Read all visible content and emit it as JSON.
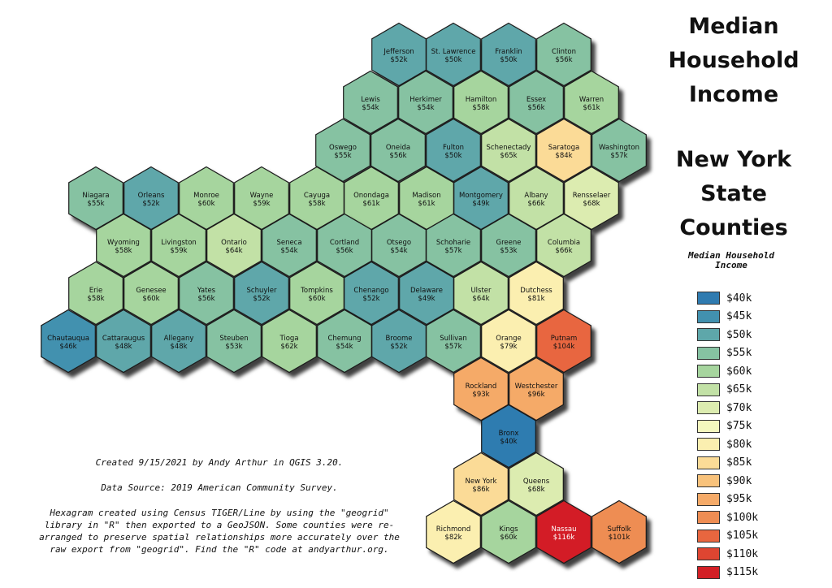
{
  "title": {
    "line1": "Median Household Income",
    "line2": "New York State Counties"
  },
  "legend": {
    "title": "Median Household Income",
    "items": [
      {
        "label": "$40k",
        "color": "#2f7bb0"
      },
      {
        "label": "$45k",
        "color": "#4291af"
      },
      {
        "label": "$50k",
        "color": "#5ea7aa"
      },
      {
        "label": "$55k",
        "color": "#86c2a2"
      },
      {
        "label": "$60k",
        "color": "#a6d59e"
      },
      {
        "label": "$65k",
        "color": "#c2e1a6"
      },
      {
        "label": "$70k",
        "color": "#dcecb0"
      },
      {
        "label": "$75k",
        "color": "#f4f8be"
      },
      {
        "label": "$80k",
        "color": "#fbefb0"
      },
      {
        "label": "$85k",
        "color": "#fbdb97"
      },
      {
        "label": "$90k",
        "color": "#f8c27b"
      },
      {
        "label": "$95k",
        "color": "#f5aa68"
      },
      {
        "label": "$100k",
        "color": "#ee8d53"
      },
      {
        "label": "$105k",
        "color": "#e8663f"
      },
      {
        "label": "$110k",
        "color": "#de4531"
      },
      {
        "label": "$115k",
        "color": "#d31f25"
      }
    ]
  },
  "counties": [
    {
      "name": "Jefferson",
      "value": "$52k",
      "income": 52
    },
    {
      "name": "St. Lawrence",
      "value": "$50k",
      "income": 50
    },
    {
      "name": "Franklin",
      "value": "$50k",
      "income": 50
    },
    {
      "name": "Clinton",
      "value": "$56k",
      "income": 56
    },
    {
      "name": "Lewis",
      "value": "$54k",
      "income": 54
    },
    {
      "name": "Herkimer",
      "value": "$54k",
      "income": 54
    },
    {
      "name": "Hamilton",
      "value": "$58k",
      "income": 58
    },
    {
      "name": "Essex",
      "value": "$56k",
      "income": 56
    },
    {
      "name": "Warren",
      "value": "$61k",
      "income": 61
    },
    {
      "name": "Oswego",
      "value": "$55k",
      "income": 55
    },
    {
      "name": "Oneida",
      "value": "$56k",
      "income": 56
    },
    {
      "name": "Fulton",
      "value": "$50k",
      "income": 50
    },
    {
      "name": "Schenectady",
      "value": "$65k",
      "income": 65
    },
    {
      "name": "Saratoga",
      "value": "$84k",
      "income": 84
    },
    {
      "name": "Washington",
      "value": "$57k",
      "income": 57
    },
    {
      "name": "Niagara",
      "value": "$55k",
      "income": 55
    },
    {
      "name": "Orleans",
      "value": "$52k",
      "income": 52
    },
    {
      "name": "Monroe",
      "value": "$60k",
      "income": 60
    },
    {
      "name": "Wayne",
      "value": "$59k",
      "income": 59
    },
    {
      "name": "Cayuga",
      "value": "$58k",
      "income": 58
    },
    {
      "name": "Onondaga",
      "value": "$61k",
      "income": 61
    },
    {
      "name": "Madison",
      "value": "$61k",
      "income": 61
    },
    {
      "name": "Montgomery",
      "value": "$49k",
      "income": 49
    },
    {
      "name": "Albany",
      "value": "$66k",
      "income": 66
    },
    {
      "name": "Rensselaer",
      "value": "$68k",
      "income": 68
    },
    {
      "name": "Wyoming",
      "value": "$58k",
      "income": 58
    },
    {
      "name": "Livingston",
      "value": "$59k",
      "income": 59
    },
    {
      "name": "Ontario",
      "value": "$64k",
      "income": 64
    },
    {
      "name": "Seneca",
      "value": "$54k",
      "income": 54
    },
    {
      "name": "Cortland",
      "value": "$56k",
      "income": 56
    },
    {
      "name": "Otsego",
      "value": "$54k",
      "income": 54
    },
    {
      "name": "Schoharie",
      "value": "$57k",
      "income": 57
    },
    {
      "name": "Greene",
      "value": "$53k",
      "income": 53
    },
    {
      "name": "Columbia",
      "value": "$66k",
      "income": 66
    },
    {
      "name": "Erie",
      "value": "$58k",
      "income": 58
    },
    {
      "name": "Genesee",
      "value": "$60k",
      "income": 60
    },
    {
      "name": "Yates",
      "value": "$56k",
      "income": 56
    },
    {
      "name": "Schuyler",
      "value": "$52k",
      "income": 52
    },
    {
      "name": "Tompkins",
      "value": "$60k",
      "income": 60
    },
    {
      "name": "Chenango",
      "value": "$52k",
      "income": 52
    },
    {
      "name": "Delaware",
      "value": "$49k",
      "income": 49
    },
    {
      "name": "Ulster",
      "value": "$64k",
      "income": 64
    },
    {
      "name": "Dutchess",
      "value": "$81k",
      "income": 81
    },
    {
      "name": "Chautauqua",
      "value": "$46k",
      "income": 46
    },
    {
      "name": "Cattaraugus",
      "value": "$48k",
      "income": 48
    },
    {
      "name": "Allegany",
      "value": "$48k",
      "income": 48
    },
    {
      "name": "Steuben",
      "value": "$53k",
      "income": 53
    },
    {
      "name": "Tioga",
      "value": "$62k",
      "income": 62
    },
    {
      "name": "Chemung",
      "value": "$54k",
      "income": 54
    },
    {
      "name": "Broome",
      "value": "$52k",
      "income": 52
    },
    {
      "name": "Sullivan",
      "value": "$57k",
      "income": 57
    },
    {
      "name": "Orange",
      "value": "$79k",
      "income": 79
    },
    {
      "name": "Putnam",
      "value": "$104k",
      "income": 104
    },
    {
      "name": "Rockland",
      "value": "$93k",
      "income": 93
    },
    {
      "name": "Westchester",
      "value": "$96k",
      "income": 96
    },
    {
      "name": "Bronx",
      "value": "$40k",
      "income": 40
    },
    {
      "name": "New York",
      "value": "$86k",
      "income": 86
    },
    {
      "name": "Queens",
      "value": "$68k",
      "income": 68
    },
    {
      "name": "Richmond",
      "value": "$82k",
      "income": 82
    },
    {
      "name": "Kings",
      "value": "$60k",
      "income": 60
    },
    {
      "name": "Nassau",
      "value": "$116k",
      "income": 116
    },
    {
      "name": "Suffolk",
      "value": "$101k",
      "income": 101
    }
  ],
  "credits": {
    "line1": "Created 9/15/2021 by Andy Arthur in QGIS 3.20.",
    "line2": "Data Source: 2019 American Community Survey.",
    "line3": "Hexagram created using Census TIGER/Line by using the \"geogrid\"  library in \"R\" then exported to a GeoJSON. Some counties were re-arranged to preserve spatial relationships more accurately over the raw export from \"geogrid\". Find the \"R\" code at andyarthur.org."
  }
}
